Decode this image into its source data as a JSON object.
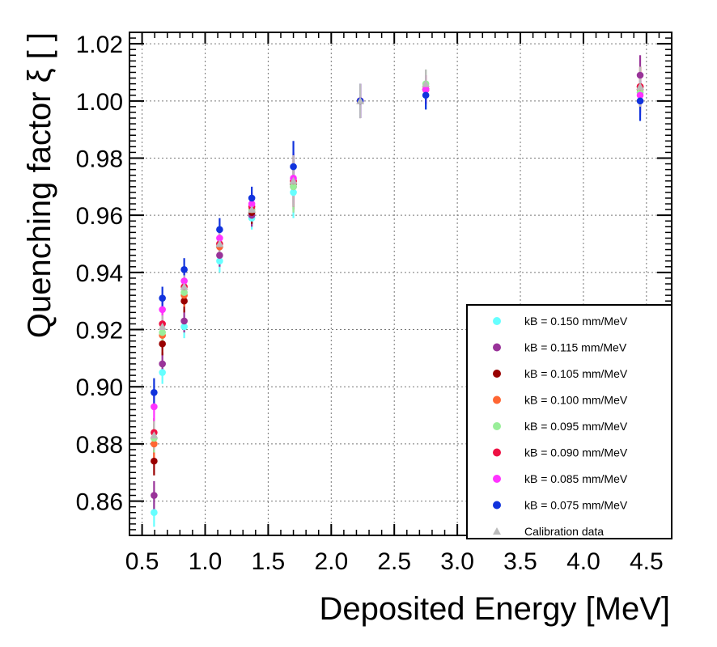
{
  "chart_data": {
    "type": "scatter",
    "xlabel": "Deposited Energy [MeV]",
    "ylabel": "Quenching factor ξ [ ]",
    "xlim": [
      0.4,
      4.7
    ],
    "ylim": [
      0.848,
      1.024
    ],
    "xticks": [
      "0.5",
      "1.0",
      "1.5",
      "2.0",
      "2.5",
      "3.0",
      "3.5",
      "4.0",
      "4.5"
    ],
    "yticks": [
      "0.86",
      "0.88",
      "0.90",
      "0.92",
      "0.94",
      "0.96",
      "0.98",
      "1.00",
      "1.02"
    ],
    "grid": true,
    "legend_position": "bottom-right",
    "x": [
      0.595,
      0.661,
      0.834,
      1.115,
      1.37,
      1.7,
      2.23,
      2.75,
      4.45
    ],
    "series": [
      {
        "name": "kB = 0.150 mm/MeV",
        "color": "#66ffff",
        "marker": "circle",
        "values": [
          0.856,
          0.905,
          0.921,
          0.944,
          0.959,
          0.968,
          1.0,
          1.002,
          1.003
        ]
      },
      {
        "name": "kB = 0.115 mm/MeV",
        "color": "#993399",
        "marker": "circle",
        "values": [
          0.862,
          0.908,
          0.923,
          0.946,
          0.96,
          0.97,
          1.0,
          1.004,
          1.009
        ]
      },
      {
        "name": "kB = 0.105 mm/MeV",
        "color": "#990000",
        "marker": "circle",
        "values": [
          0.874,
          0.915,
          0.93,
          0.949,
          0.961,
          0.971,
          1.0,
          1.004,
          1.005
        ]
      },
      {
        "name": "kB = 0.100 mm/MeV",
        "color": "#ff6633",
        "marker": "circle",
        "values": [
          0.88,
          0.918,
          0.932,
          0.949,
          0.962,
          0.972,
          1.0,
          1.004,
          1.004
        ]
      },
      {
        "name": "kB = 0.095 mm/MeV",
        "color": "#99ee99",
        "marker": "circle",
        "values": [
          0.882,
          0.919,
          0.933,
          0.95,
          0.962,
          0.97,
          1.0,
          1.006,
          1.003
        ]
      },
      {
        "name": "kB = 0.090 mm/MeV",
        "color": "#ee1144",
        "marker": "circle",
        "values": [
          0.884,
          0.922,
          0.935,
          0.95,
          0.963,
          0.972,
          1.0,
          1.004,
          1.005
        ]
      },
      {
        "name": "kB = 0.085 mm/MeV",
        "color": "#ff33ff",
        "marker": "circle",
        "values": [
          0.893,
          0.927,
          0.937,
          0.952,
          0.964,
          0.973,
          1.0,
          1.004,
          1.002
        ]
      },
      {
        "name": "kB = 0.075 mm/MeV",
        "color": "#1133dd",
        "marker": "circle",
        "values": [
          0.898,
          0.931,
          0.941,
          0.955,
          0.966,
          0.977,
          1.0,
          1.002,
          1.0
        ]
      },
      {
        "name": "Calibration data",
        "color": "#bbbbbb",
        "marker": "triangle",
        "values": [
          0.883,
          0.921,
          0.935,
          0.95,
          0.962,
          0.972,
          1.0,
          1.006,
          1.005
        ]
      }
    ]
  }
}
